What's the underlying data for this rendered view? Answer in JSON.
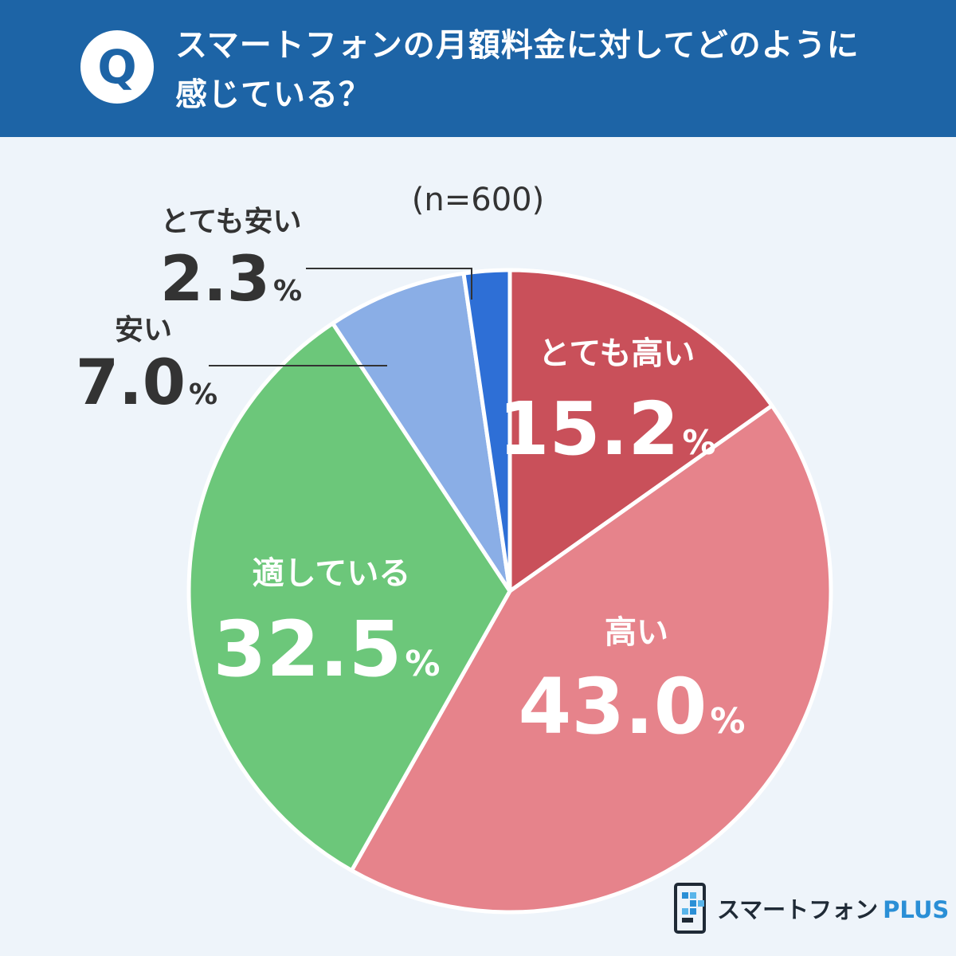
{
  "header": {
    "badge": "Q",
    "question_line1": "スマートフォンの月額料金に対してどのように",
    "question_line2": "感じている？"
  },
  "sample_size": "(n=600)",
  "brand": {
    "name": "スマートフォン",
    "suffix": "PLUS"
  },
  "chart_data": {
    "type": "pie",
    "title": "スマートフォンの月額料金に対してどのように感じている？",
    "n": 600,
    "unit": "%",
    "start": "12 o'clock",
    "direction": "clockwise",
    "slices": [
      {
        "label": "とても高い",
        "value": 15.2,
        "value_text": "15.2",
        "color": "#c9505a"
      },
      {
        "label": "高い",
        "value": 43.0,
        "value_text": "43.0",
        "color": "#e6838b"
      },
      {
        "label": "適している",
        "value": 32.5,
        "value_text": "32.5",
        "color": "#6cc77a"
      },
      {
        "label": "安い",
        "value": 7.0,
        "value_text": "7.0",
        "color": "#8aaee6"
      },
      {
        "label": "とても安い",
        "value": 2.3,
        "value_text": "2.3",
        "color": "#2e6fd6"
      }
    ]
  }
}
